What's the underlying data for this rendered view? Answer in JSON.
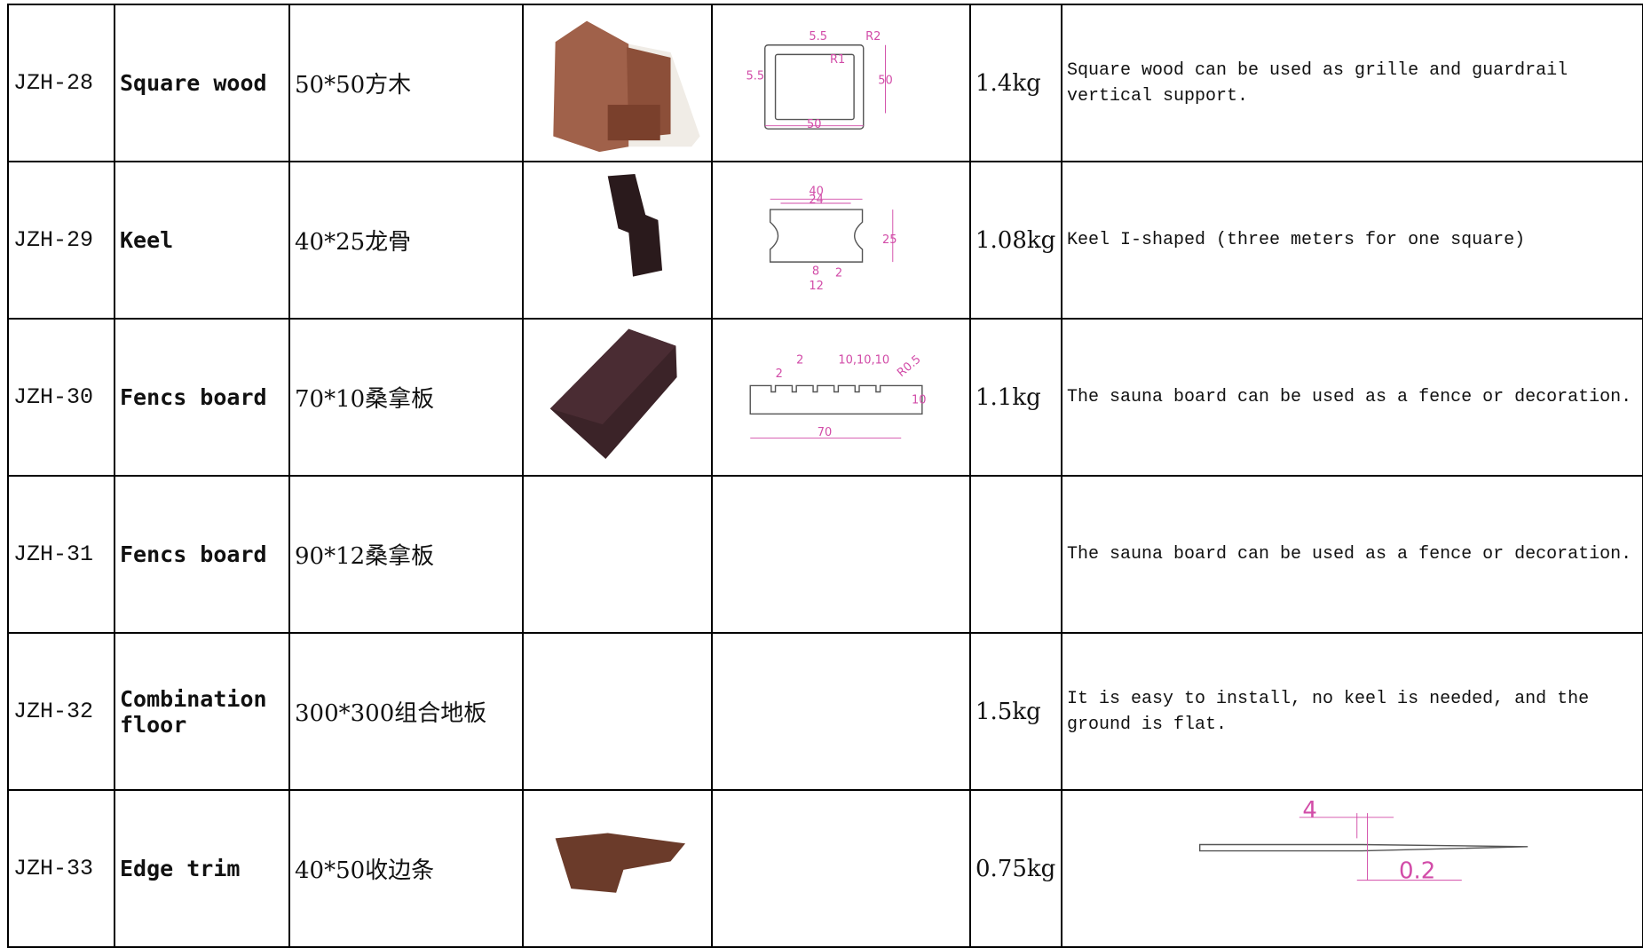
{
  "table": {
    "rows": [
      {
        "code": "JZH-28",
        "name": "Square wood",
        "spec": "50*50方木",
        "weight": "1.4kg",
        "description": "Square wood can be used as grille and guardrail vertical support.",
        "drawing": [
          "5.5",
          "R2",
          "R1",
          "5.5",
          "50",
          "50"
        ]
      },
      {
        "code": "JZH-29",
        "name": "Keel",
        "spec": "40*25龙骨",
        "weight": "1.08kg",
        "description": "Keel I-shaped (three meters for one square)",
        "drawing": [
          "40",
          "24",
          "25",
          "8",
          "12",
          "2"
        ]
      },
      {
        "code": "JZH-30",
        "name": "Fencs board",
        "spec": "70*10桑拿板",
        "weight": "1.1kg",
        "description": "The sauna board can be used as a fence or decoration.",
        "drawing": [
          "2",
          "2",
          "10,10,10",
          "R0.5",
          "10",
          "70"
        ]
      },
      {
        "code": "JZH-31",
        "name": "Fencs board",
        "spec": "90*12桑拿板",
        "description": "The sauna board can be used as a fence or decoration."
      },
      {
        "code": "JZH-32",
        "name": "Combination floor",
        "spec": "300*300组合地板",
        "weight": "1.5kg",
        "description": "It is easy to install, no keel is needed, and the ground is flat."
      },
      {
        "code": "JZH-33",
        "name": "Edge trim",
        "spec": "40*50收边条",
        "weight": "0.75kg",
        "drawing": [
          "4",
          "0.2"
        ]
      }
    ]
  }
}
